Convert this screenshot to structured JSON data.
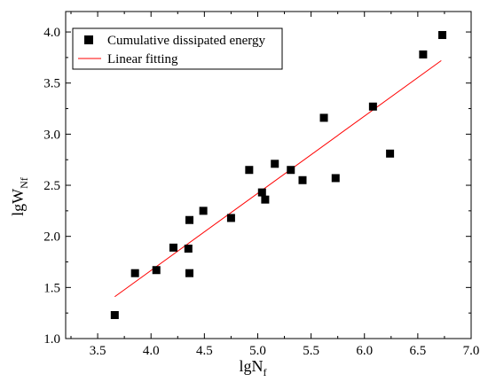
{
  "chart_data": {
    "type": "scatter",
    "xlabel": "lgN",
    "xlabel_sub": "f",
    "ylabel": "lgW",
    "ylabel_sub": "Nf",
    "xlim": [
      3.2,
      7.0
    ],
    "ylim": [
      1.0,
      4.2
    ],
    "xticks": [
      "3.5",
      "4.0",
      "4.5",
      "5.0",
      "5.5",
      "6.0",
      "6.5",
      "7.0"
    ],
    "yticks": [
      "1.0",
      "1.5",
      "2.0",
      "2.5",
      "3.0",
      "3.5",
      "4.0"
    ],
    "legend_position": "top-left",
    "grid": false,
    "series": [
      {
        "name": "Cumulative dissipated energy",
        "kind": "scatter",
        "marker": "square",
        "color": "#000000",
        "x": [
          3.66,
          3.85,
          4.05,
          4.21,
          4.35,
          4.36,
          4.36,
          4.49,
          4.75,
          4.92,
          5.04,
          5.07,
          5.16,
          5.31,
          5.42,
          5.62,
          5.73,
          6.08,
          6.24,
          6.55,
          6.73
        ],
        "y": [
          1.23,
          1.64,
          1.67,
          1.89,
          1.88,
          2.16,
          1.64,
          2.25,
          2.18,
          2.65,
          2.43,
          2.36,
          2.71,
          2.65,
          2.55,
          3.16,
          2.57,
          3.27,
          2.81,
          3.78,
          3.97
        ]
      },
      {
        "name": "Linear fitting",
        "kind": "line",
        "color": "#ff0000",
        "x": [
          3.66,
          6.72
        ],
        "y": [
          1.41,
          3.72
        ]
      }
    ]
  }
}
